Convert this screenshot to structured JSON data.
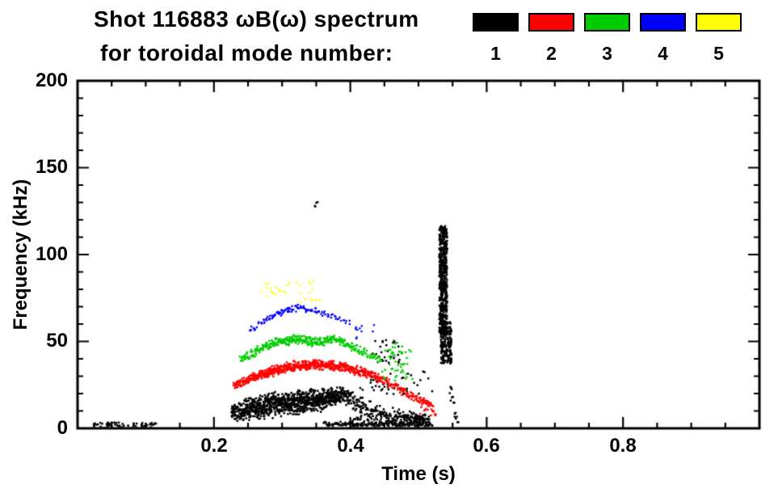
{
  "header": {
    "title": "Shot 116883 ωB(ω) spectrum",
    "subtitle": "for toroidal mode number:"
  },
  "legend": {
    "entries": [
      {
        "label": "1",
        "color": "#000000"
      },
      {
        "label": "2",
        "color": "#ff0000"
      },
      {
        "label": "3",
        "color": "#00cc00"
      },
      {
        "label": "4",
        "color": "#0000ff"
      },
      {
        "label": "5",
        "color": "#ffff00"
      }
    ]
  },
  "chart_data": {
    "type": "scatter",
    "title": "Shot 116883 ωB(ω) spectrum for toroidal mode number: 1 2 3 4 5",
    "xlabel": "Time (s)",
    "ylabel": "Frequency (kHz)",
    "xlim": [
      0.0,
      1.0
    ],
    "ylim": [
      0,
      200
    ],
    "xticks": [
      0.2,
      0.4,
      0.6,
      0.8
    ],
    "xtick_labels": [
      "0.2",
      "0.4",
      "0.6",
      "0.8"
    ],
    "yticks": [
      0,
      50,
      100,
      150,
      200
    ],
    "ytick_labels": [
      "0",
      "50",
      "100",
      "150",
      "200"
    ],
    "x_minor_step": 0.05,
    "y_minor_step": 10,
    "grid": false,
    "legend_position": "top-right",
    "series": [
      {
        "name": "1",
        "color": "#000000",
        "point_size": 2.5,
        "bands": [
          {
            "points": [
              [
                0.225,
                10,
                6,
                8
              ],
              [
                0.245,
                12,
                7,
                10
              ],
              [
                0.27,
                13,
                8,
                12
              ],
              [
                0.3,
                15,
                8,
                13
              ],
              [
                0.33,
                16,
                8,
                13
              ],
              [
                0.36,
                17,
                7,
                12
              ],
              [
                0.385,
                20,
                5,
                9
              ],
              [
                0.4,
                17,
                6,
                5
              ],
              [
                0.425,
                11,
                6,
                3
              ],
              [
                0.45,
                8,
                5,
                3
              ],
              [
                0.475,
                7,
                5,
                5
              ],
              [
                0.5,
                6,
                5,
                6
              ],
              [
                0.515,
                5,
                4,
                4
              ]
            ]
          },
          {
            "points": [
              [
                0.36,
                3,
                1.5,
                2
              ],
              [
                0.44,
                3,
                1.5,
                2
              ],
              [
                0.52,
                2.5,
                1.5,
                2
              ]
            ]
          },
          {
            "points": [
              [
                0.545,
                22,
                6,
                3
              ],
              [
                0.553,
                9,
                4,
                2
              ],
              [
                0.559,
                3,
                2,
                2
              ]
            ]
          }
        ],
        "patches": [
          {
            "t": [
              0.02,
              0.115
            ],
            "f": [
              0.5,
              4
            ],
            "n": 80
          },
          {
            "t": [
              0.529,
              0.5405
            ],
            "f": [
              55,
              117
            ],
            "n": 520
          },
          {
            "t": [
              0.531,
              0.547
            ],
            "f": [
              38,
              62
            ],
            "n": 200
          },
          {
            "t": [
              0.4,
              0.47
            ],
            "f": [
              0.5,
              8
            ],
            "n": 60
          },
          {
            "t": [
              0.43,
              0.472
            ],
            "f": [
              38,
              52
            ],
            "n": 28
          },
          {
            "t": [
              0.413,
              0.52
            ],
            "f": [
              20,
              34
            ],
            "n": 45
          },
          {
            "t": [
              0.345,
              0.352
            ],
            "f": [
              127,
              132
            ],
            "n": 4
          }
        ]
      },
      {
        "name": "2",
        "color": "#ff0000",
        "point_size": 2.4,
        "bands": [
          {
            "points": [
              [
                0.228,
                25,
                2.5,
                4
              ],
              [
                0.25,
                29,
                3,
                6
              ],
              [
                0.28,
                33,
                3.5,
                8
              ],
              [
                0.31,
                36,
                3.5,
                8
              ],
              [
                0.34,
                37,
                3.5,
                8
              ],
              [
                0.37,
                37,
                3,
                7
              ],
              [
                0.4,
                35,
                3,
                6
              ],
              [
                0.43,
                31,
                3,
                4
              ],
              [
                0.455,
                27,
                3,
                3
              ],
              [
                0.48,
                21,
                3,
                3
              ],
              [
                0.505,
                16,
                2.5,
                3
              ],
              [
                0.52,
                13,
                2,
                2
              ]
            ]
          }
        ],
        "patches": [
          {
            "t": [
              0.5,
              0.525
            ],
            "f": [
              8,
              14
            ],
            "n": 15
          }
        ]
      },
      {
        "name": "3",
        "color": "#00cc00",
        "point_size": 2.4,
        "bands": [
          {
            "points": [
              [
                0.238,
                40,
                2.5,
                3
              ],
              [
                0.26,
                45,
                3,
                4
              ],
              [
                0.29,
                50,
                3,
                5
              ],
              [
                0.32,
                52,
                3,
                5
              ],
              [
                0.35,
                50,
                3,
                4
              ],
              [
                0.375,
                52,
                2.5,
                4
              ],
              [
                0.4,
                48,
                3,
                3
              ],
              [
                0.425,
                43,
                3,
                2
              ],
              [
                0.445,
                40,
                3,
                2
              ]
            ]
          }
        ],
        "patches": [
          {
            "t": [
              0.445,
              0.49
            ],
            "f": [
              28,
              46
            ],
            "n": 40
          },
          {
            "t": [
              0.46,
              0.475
            ],
            "f": [
              44,
              50
            ],
            "n": 10
          }
        ]
      },
      {
        "name": "4",
        "color": "#0000ff",
        "point_size": 2.3,
        "bands": [
          {
            "points": [
              [
                0.252,
                57,
                2,
                1.5
              ],
              [
                0.275,
                63,
                2,
                2
              ],
              [
                0.3,
                68,
                2,
                2.5
              ],
              [
                0.325,
                70,
                2,
                2
              ],
              [
                0.35,
                68,
                2,
                1.5
              ],
              [
                0.375,
                65,
                2,
                1.2
              ],
              [
                0.4,
                61,
                2,
                0.8
              ]
            ]
          }
        ],
        "patches": [
          {
            "t": [
              0.405,
              0.435
            ],
            "f": [
              52,
              60
            ],
            "n": 10
          }
        ]
      },
      {
        "name": "5",
        "color": "#ffff00",
        "point_size": 2.3,
        "bands": [],
        "patches": [
          {
            "t": [
              0.268,
              0.3
            ],
            "f": [
              76,
              84
            ],
            "n": 12
          },
          {
            "t": [
              0.3,
              0.345
            ],
            "f": [
              79,
              86
            ],
            "n": 10
          },
          {
            "t": [
              0.325,
              0.36
            ],
            "f": [
              73,
              79
            ],
            "n": 8
          }
        ]
      }
    ]
  }
}
